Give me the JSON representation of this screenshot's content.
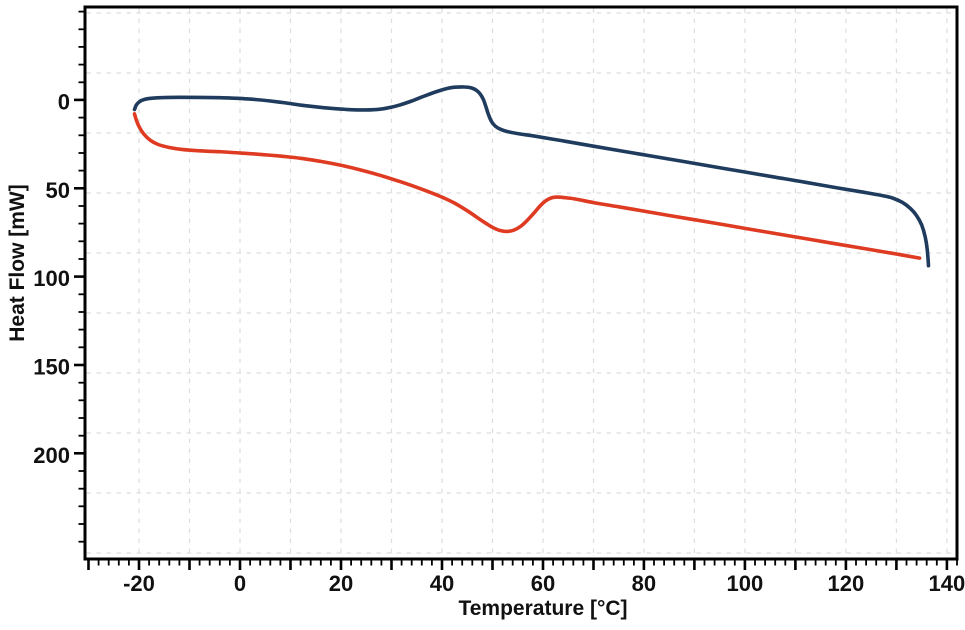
{
  "chart_data": {
    "type": "line",
    "title": "",
    "xlabel": "Temperature [°C]",
    "ylabel": "Heat Flow [mW]",
    "x_axis": {
      "min": -30.7,
      "max": 142.0,
      "tick_label_values": [
        -20,
        0,
        20,
        40,
        60,
        80,
        100,
        120,
        140
      ],
      "tick_labels": [
        "-20",
        "0",
        "20",
        "40",
        "60",
        "80",
        "100",
        "120",
        "140"
      ],
      "major_tick_step": 10,
      "minor_tick_step": 2
    },
    "y_axis": {
      "min": -52.6,
      "max": 259.8,
      "inverted_down": true,
      "tick_label_values": [
        0,
        50,
        100,
        150,
        200
      ],
      "tick_labels": [
        "0",
        "50",
        "100",
        "150",
        "200"
      ],
      "major_tick_step": 50,
      "minor_tick_step": 10
    },
    "grid": {
      "shown": true,
      "style": "dashed",
      "color": "#dedede"
    },
    "legend": {
      "shown": false
    },
    "series": [
      {
        "name": "navy-upper-curve",
        "color": "#1f3b5d",
        "points": [
          [
            -20.9,
            5.4
          ],
          [
            -20.55,
            3.0
          ],
          [
            -19.9,
            1.0
          ],
          [
            -18.9,
            -0.3
          ],
          [
            -17.4,
            -1.0
          ],
          [
            -15.2,
            -1.35
          ],
          [
            -12,
            -1.5
          ],
          [
            -8,
            -1.45
          ],
          [
            -4,
            -1.25
          ],
          [
            0,
            -0.85
          ],
          [
            3,
            -0.25
          ],
          [
            6,
            0.6
          ],
          [
            9,
            1.7
          ],
          [
            12,
            2.9
          ],
          [
            15,
            3.9
          ],
          [
            18,
            4.75
          ],
          [
            21,
            5.35
          ],
          [
            24,
            5.65
          ],
          [
            26.5,
            5.55
          ],
          [
            29,
            4.7
          ],
          [
            31.5,
            3.0
          ],
          [
            34,
            0.6
          ],
          [
            36.5,
            -2.2
          ],
          [
            39,
            -4.8
          ],
          [
            41,
            -6.5
          ],
          [
            42.5,
            -7.2
          ],
          [
            44.5,
            -7.35
          ],
          [
            45.8,
            -6.8
          ],
          [
            46.8,
            -5.5
          ],
          [
            47.6,
            -3.2
          ],
          [
            48.2,
            -0.2
          ],
          [
            48.7,
            3.8
          ],
          [
            49.2,
            8.2
          ],
          [
            49.8,
            12.2
          ],
          [
            50.6,
            14.9
          ],
          [
            51.6,
            16.6
          ],
          [
            53,
            17.9
          ],
          [
            55.5,
            19.3
          ],
          [
            58,
            20.3
          ],
          [
            64,
            23.2
          ],
          [
            70,
            26.2
          ],
          [
            76,
            29.1
          ],
          [
            82,
            32.0
          ],
          [
            88,
            34.9
          ],
          [
            94,
            37.9
          ],
          [
            100,
            40.8
          ],
          [
            106,
            43.7
          ],
          [
            112,
            46.6
          ],
          [
            118,
            49.6
          ],
          [
            123,
            52.0
          ],
          [
            127,
            54.0
          ],
          [
            129.2,
            55.5
          ],
          [
            131.2,
            58.0
          ],
          [
            132.8,
            61.5
          ],
          [
            134.0,
            65.5
          ],
          [
            135.0,
            70.8
          ],
          [
            135.7,
            77.5
          ],
          [
            136.1,
            84.5
          ],
          [
            136.35,
            93.8
          ]
        ]
      },
      {
        "name": "red-lower-curve",
        "color": "#de3b22",
        "points": [
          [
            -20.9,
            7.9
          ],
          [
            -20.55,
            11.2
          ],
          [
            -19.95,
            15.3
          ],
          [
            -19.05,
            19.3
          ],
          [
            -17.8,
            22.7
          ],
          [
            -16.2,
            25.2
          ],
          [
            -14,
            26.9
          ],
          [
            -11.5,
            28.0
          ],
          [
            -8,
            28.8
          ],
          [
            -4,
            29.3
          ],
          [
            0,
            30.0
          ],
          [
            4,
            30.8
          ],
          [
            8,
            31.8
          ],
          [
            12,
            33.0
          ],
          [
            16,
            34.8
          ],
          [
            20,
            37.0
          ],
          [
            24,
            39.7
          ],
          [
            28,
            42.9
          ],
          [
            32,
            46.5
          ],
          [
            36,
            50.5
          ],
          [
            40,
            55.0
          ],
          [
            42.5,
            58.4
          ],
          [
            45,
            62.7
          ],
          [
            47,
            66.6
          ],
          [
            48.7,
            69.8
          ],
          [
            50,
            72.1
          ],
          [
            51.3,
            73.7
          ],
          [
            52.8,
            74.4
          ],
          [
            54.2,
            73.7
          ],
          [
            55.6,
            71.5
          ],
          [
            57,
            67.8
          ],
          [
            58.4,
            63.4
          ],
          [
            59.8,
            58.9
          ],
          [
            61.2,
            56.0
          ],
          [
            62.6,
            55.0
          ],
          [
            64.2,
            55.25
          ],
          [
            66.5,
            56.1
          ],
          [
            70,
            58.1
          ],
          [
            75,
            60.5
          ],
          [
            80,
            62.9
          ],
          [
            85,
            65.4
          ],
          [
            90,
            67.8
          ],
          [
            95,
            70.2
          ],
          [
            100,
            72.7
          ],
          [
            106,
            75.6
          ],
          [
            112,
            78.5
          ],
          [
            118,
            81.4
          ],
          [
            124,
            84.3
          ],
          [
            130,
            87.2
          ],
          [
            134.6,
            89.5
          ]
        ]
      }
    ]
  },
  "frame_color": "#000000",
  "background_color": "#ffffff"
}
